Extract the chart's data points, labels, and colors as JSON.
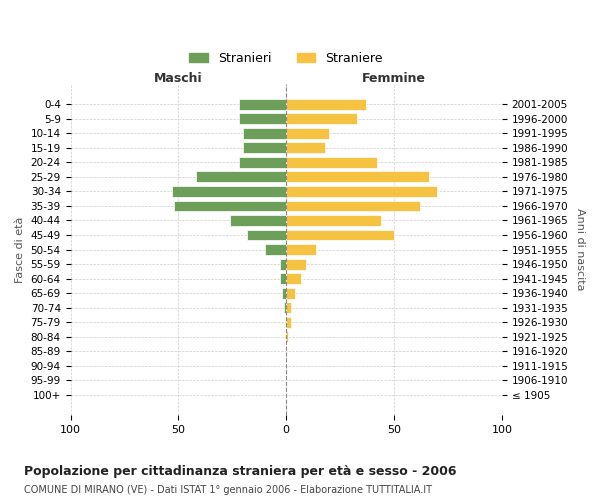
{
  "age_groups": [
    "100+",
    "95-99",
    "90-94",
    "85-89",
    "80-84",
    "75-79",
    "70-74",
    "65-69",
    "60-64",
    "55-59",
    "50-54",
    "45-49",
    "40-44",
    "35-39",
    "30-34",
    "25-29",
    "20-24",
    "15-19",
    "10-14",
    "5-9",
    "0-4"
  ],
  "birth_years": [
    "≤ 1905",
    "1906-1910",
    "1911-1915",
    "1916-1920",
    "1921-1925",
    "1926-1930",
    "1931-1935",
    "1936-1940",
    "1941-1945",
    "1946-1950",
    "1951-1955",
    "1956-1960",
    "1961-1965",
    "1966-1970",
    "1971-1975",
    "1976-1980",
    "1981-1985",
    "1986-1990",
    "1991-1995",
    "1996-2000",
    "2001-2005"
  ],
  "maschi": [
    0,
    0,
    0,
    0,
    0,
    0,
    1,
    2,
    3,
    3,
    10,
    18,
    26,
    52,
    53,
    42,
    22,
    20,
    20,
    22,
    22
  ],
  "femmine": [
    0,
    0,
    0,
    0,
    1,
    2,
    2,
    4,
    7,
    9,
    14,
    50,
    44,
    62,
    70,
    66,
    42,
    18,
    20,
    33,
    37
  ],
  "color_maschi": "#6d9e5a",
  "color_femmine": "#f5c242",
  "bg_color": "#ffffff",
  "grid_color": "#cccccc",
  "title": "Popolazione per cittadinanza straniera per età e sesso - 2006",
  "subtitle": "COMUNE DI MIRANO (VE) - Dati ISTAT 1° gennaio 2006 - Elaborazione TUTTITALIA.IT",
  "xlabel_left": "Maschi",
  "xlabel_right": "Femmine",
  "ylabel_left": "Fasce di età",
  "ylabel_right": "Anni di nascita",
  "legend_maschi": "Stranieri",
  "legend_femmine": "Straniere",
  "xlim": 100
}
